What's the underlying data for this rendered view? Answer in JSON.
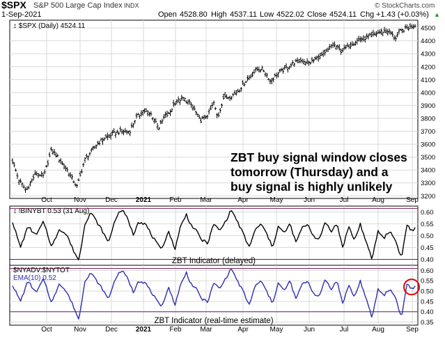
{
  "header": {
    "symbol": "$SPX",
    "name": "S&P 500 Large Cap Index",
    "exchange": "INDX",
    "date": "1-Sep-2021",
    "open_label": "Open",
    "open": "4528.80",
    "high_label": "High",
    "high": "4537.11",
    "low_label": "Low",
    "low": "4522.02",
    "close_label": "Close",
    "close": "4524.11",
    "chg_label": "Chg",
    "chg": "+1.43 (+0.03%)",
    "chg_arrow": "▲",
    "brand": "© StockCharts.com"
  },
  "colors": {
    "price": "#000000",
    "zbt_delayed": "#000000",
    "zbt_realtime": "#2d2db0",
    "upper_band": "#7a1f5a",
    "lower_band": "#5a1f6e",
    "circle": "#e00000",
    "grid": "#d9d9d9",
    "annotation": "#000000"
  },
  "chart_data": [
    {
      "type": "ohlc",
      "panel": "price",
      "legend": "$SPX (Daily) 4524.11",
      "months": [
        "Oct",
        "Nov",
        "Dec",
        "2021",
        "Feb",
        "Mar",
        "Apr",
        "May",
        "Jun",
        "Jul",
        "Aug",
        "Sep"
      ],
      "ylim": [
        3180,
        4560
      ],
      "yticks": [
        3200,
        3300,
        3400,
        3500,
        3600,
        3700,
        3800,
        3900,
        4000,
        4100,
        4200,
        4300,
        4400,
        4500
      ],
      "anchors": [
        [
          0,
          3470
        ],
        [
          0.03,
          3330
        ],
        [
          0.07,
          3240
        ],
        [
          0.12,
          3380
        ],
        [
          0.16,
          3350
        ],
        [
          0.2,
          3560
        ],
        [
          0.24,
          3480
        ],
        [
          0.28,
          3400
        ],
        [
          0.33,
          3270
        ],
        [
          0.37,
          3480
        ],
        [
          0.41,
          3560
        ],
        [
          0.44,
          3610
        ],
        [
          0.48,
          3660
        ],
        [
          0.55,
          3700
        ],
        [
          0.6,
          3700
        ],
        [
          0.63,
          3800
        ],
        [
          0.67,
          3860
        ],
        [
          0.71,
          3830
        ],
        [
          0.75,
          3730
        ],
        [
          0.78,
          3820
        ],
        [
          0.8,
          3830
        ],
        [
          0.83,
          3920
        ],
        [
          0.87,
          3960
        ],
        [
          0.91,
          3910
        ],
        [
          0.93,
          3870
        ],
        [
          0.96,
          3780
        ],
        [
          1.0,
          3830
        ],
        [
          1.03,
          3920
        ],
        [
          1.05,
          3800
        ],
        [
          1.08,
          3960
        ],
        [
          1.12,
          3970
        ],
        [
          1.16,
          4020
        ],
        [
          1.2,
          4100
        ],
        [
          1.25,
          4180
        ],
        [
          1.28,
          4180
        ],
        [
          1.3,
          4140
        ],
        [
          1.32,
          4090
        ],
        [
          1.36,
          4150
        ],
        [
          1.4,
          4190
        ],
        [
          1.44,
          4230
        ],
        [
          1.48,
          4250
        ],
        [
          1.52,
          4230
        ],
        [
          1.56,
          4270
        ],
        [
          1.6,
          4300
        ],
        [
          1.64,
          4380
        ],
        [
          1.68,
          4320
        ],
        [
          1.72,
          4360
        ],
        [
          1.76,
          4400
        ],
        [
          1.8,
          4420
        ],
        [
          1.84,
          4440
        ],
        [
          1.88,
          4470
        ],
        [
          1.92,
          4480
        ],
        [
          1.96,
          4420
        ],
        [
          1.98,
          4470
        ],
        [
          2.02,
          4500
        ],
        [
          2.06,
          4520
        ]
      ],
      "annotation": [
        "ZBT buy signal window closes",
        "tomorrow (Thursday) and a",
        "buy signal is highly unlikely"
      ]
    },
    {
      "type": "line",
      "panel": "zbt_delayed",
      "legend": "!BINYBT 0.53 (31 Aug)",
      "label": "ZBT Indicator (delayed)",
      "ylim": [
        0.375,
        0.625
      ],
      "yticks": [
        0.4,
        0.45,
        0.5,
        0.55,
        0.6
      ],
      "bands": [
        0.4,
        0.615
      ],
      "anchors": [
        [
          0,
          0.56
        ],
        [
          0.04,
          0.45
        ],
        [
          0.08,
          0.54
        ],
        [
          0.12,
          0.5
        ],
        [
          0.16,
          0.56
        ],
        [
          0.2,
          0.45
        ],
        [
          0.24,
          0.53
        ],
        [
          0.28,
          0.5
        ],
        [
          0.31,
          0.44
        ],
        [
          0.34,
          0.395
        ],
        [
          0.37,
          0.55
        ],
        [
          0.4,
          0.6
        ],
        [
          0.43,
          0.56
        ],
        [
          0.46,
          0.52
        ],
        [
          0.49,
          0.47
        ],
        [
          0.53,
          0.58
        ],
        [
          0.56,
          0.61
        ],
        [
          0.59,
          0.57
        ],
        [
          0.62,
          0.5
        ],
        [
          0.64,
          0.56
        ],
        [
          0.68,
          0.55
        ],
        [
          0.72,
          0.49
        ],
        [
          0.76,
          0.44
        ],
        [
          0.8,
          0.52
        ],
        [
          0.83,
          0.44
        ],
        [
          0.86,
          0.54
        ],
        [
          0.89,
          0.59
        ],
        [
          0.91,
          0.55
        ],
        [
          0.94,
          0.52
        ],
        [
          0.97,
          0.48
        ],
        [
          1.0,
          0.47
        ],
        [
          1.03,
          0.55
        ],
        [
          1.06,
          0.52
        ],
        [
          1.09,
          0.56
        ],
        [
          1.12,
          0.61
        ],
        [
          1.15,
          0.56
        ],
        [
          1.18,
          0.51
        ],
        [
          1.21,
          0.45
        ],
        [
          1.24,
          0.52
        ],
        [
          1.27,
          0.55
        ],
        [
          1.3,
          0.51
        ],
        [
          1.33,
          0.45
        ],
        [
          1.36,
          0.54
        ],
        [
          1.39,
          0.51
        ],
        [
          1.42,
          0.55
        ],
        [
          1.45,
          0.47
        ],
        [
          1.48,
          0.53
        ],
        [
          1.51,
          0.55
        ],
        [
          1.54,
          0.5
        ],
        [
          1.57,
          0.48
        ],
        [
          1.6,
          0.56
        ],
        [
          1.63,
          0.52
        ],
        [
          1.66,
          0.55
        ],
        [
          1.69,
          0.45
        ],
        [
          1.72,
          0.54
        ],
        [
          1.75,
          0.48
        ],
        [
          1.78,
          0.55
        ],
        [
          1.81,
          0.47
        ],
        [
          1.84,
          0.4
        ],
        [
          1.87,
          0.52
        ],
        [
          1.9,
          0.49
        ],
        [
          1.93,
          0.52
        ],
        [
          1.96,
          0.48
        ],
        [
          1.99,
          0.405
        ],
        [
          2.02,
          0.55
        ],
        [
          2.04,
          0.52
        ],
        [
          2.06,
          0.53
        ]
      ]
    },
    {
      "type": "line",
      "panel": "zbt_realtime",
      "legend_line1": "$NYADV:$NYTOT",
      "legend_line2": "EMA(10) 0.52",
      "label": "ZBT Indicator (real-time estimate)",
      "ylim": [
        0.335,
        0.625
      ],
      "yticks": [
        0.35,
        0.4,
        0.45,
        0.5,
        0.55,
        0.6
      ],
      "bands": [
        0.4,
        0.61
      ],
      "anchors": [
        [
          0,
          0.53
        ],
        [
          0.04,
          0.45
        ],
        [
          0.08,
          0.55
        ],
        [
          0.12,
          0.49
        ],
        [
          0.16,
          0.56
        ],
        [
          0.2,
          0.44
        ],
        [
          0.24,
          0.54
        ],
        [
          0.28,
          0.49
        ],
        [
          0.31,
          0.43
        ],
        [
          0.34,
          0.36
        ],
        [
          0.37,
          0.55
        ],
        [
          0.4,
          0.59
        ],
        [
          0.43,
          0.55
        ],
        [
          0.46,
          0.51
        ],
        [
          0.49,
          0.46
        ],
        [
          0.53,
          0.57
        ],
        [
          0.56,
          0.6
        ],
        [
          0.59,
          0.56
        ],
        [
          0.62,
          0.49
        ],
        [
          0.64,
          0.55
        ],
        [
          0.68,
          0.54
        ],
        [
          0.72,
          0.48
        ],
        [
          0.76,
          0.42
        ],
        [
          0.8,
          0.52
        ],
        [
          0.83,
          0.43
        ],
        [
          0.86,
          0.53
        ],
        [
          0.89,
          0.59
        ],
        [
          0.91,
          0.54
        ],
        [
          0.94,
          0.51
        ],
        [
          0.97,
          0.46
        ],
        [
          1.0,
          0.45
        ],
        [
          1.03,
          0.54
        ],
        [
          1.06,
          0.51
        ],
        [
          1.09,
          0.56
        ],
        [
          1.12,
          0.61
        ],
        [
          1.15,
          0.55
        ],
        [
          1.18,
          0.5
        ],
        [
          1.21,
          0.43
        ],
        [
          1.24,
          0.52
        ],
        [
          1.27,
          0.55
        ],
        [
          1.3,
          0.5
        ],
        [
          1.33,
          0.44
        ],
        [
          1.36,
          0.54
        ],
        [
          1.39,
          0.5
        ],
        [
          1.42,
          0.55
        ],
        [
          1.45,
          0.46
        ],
        [
          1.48,
          0.53
        ],
        [
          1.51,
          0.55
        ],
        [
          1.54,
          0.49
        ],
        [
          1.57,
          0.47
        ],
        [
          1.6,
          0.56
        ],
        [
          1.63,
          0.51
        ],
        [
          1.66,
          0.55
        ],
        [
          1.69,
          0.44
        ],
        [
          1.72,
          0.53
        ],
        [
          1.75,
          0.47
        ],
        [
          1.78,
          0.55
        ],
        [
          1.81,
          0.46
        ],
        [
          1.84,
          0.37
        ],
        [
          1.87,
          0.51
        ],
        [
          1.9,
          0.48
        ],
        [
          1.93,
          0.51
        ],
        [
          1.96,
          0.47
        ],
        [
          1.99,
          0.37
        ],
        [
          2.02,
          0.54
        ],
        [
          2.04,
          0.51
        ],
        [
          2.06,
          0.52
        ]
      ],
      "circle_value": 0.52
    }
  ]
}
